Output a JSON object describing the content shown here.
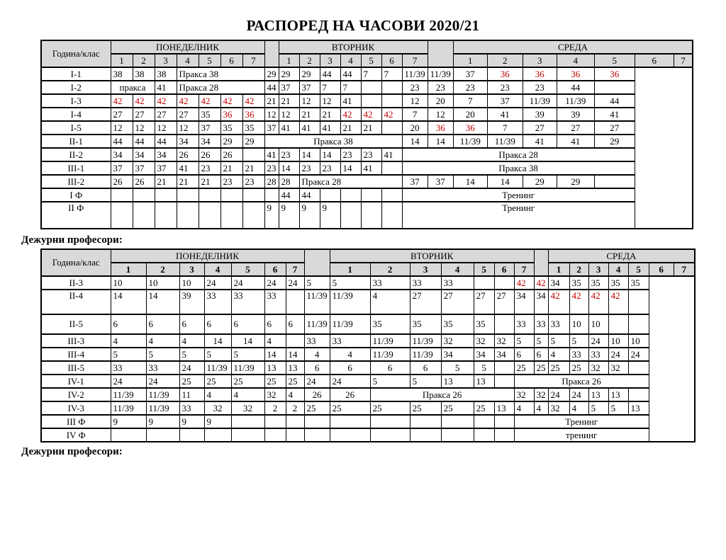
{
  "title": "РАСПОРЕД НА ЧАСОВИ 2020/21",
  "section_label_top": "Дежурни професори:",
  "section_label_bottom": "Дежурни професори:",
  "colors": {
    "red": "#c00000",
    "header_bg": "#d9d9d9",
    "border": "#000000",
    "page_bg": "#ffffff"
  },
  "header": {
    "year_class": "Година/клас",
    "days": [
      "ПОНЕДЕЛНИК",
      "ВТОРНИК",
      "СРЕДА"
    ],
    "periods": [
      "1",
      "2",
      "3",
      "4",
      "5",
      "6",
      "7"
    ]
  },
  "tables": [
    {
      "rows": [
        {
          "label": "I-1",
          "mon": [
            {
              "t": "38",
              "b": 1
            },
            {
              "t": "38",
              "b": 1
            },
            "38",
            {
              "t": "Пракса 38",
              "s": 4,
              "l": 1
            }
          ],
          "tue": [
            "29",
            "29",
            "29",
            "44",
            "44",
            "7",
            "7"
          ],
          "wed": [
            "11/39",
            "11/39",
            "37",
            {
              "t": "36",
              "r": 1
            },
            {
              "t": "36",
              "r": 1
            },
            {
              "t": "36",
              "r": 1
            },
            {
              "t": "36",
              "r": 1
            }
          ]
        },
        {
          "label": "I-2",
          "mon": [
            {
              "t": "пракса",
              "s": 2
            },
            "41",
            {
              "t": "Пракса 28",
              "s": 4,
              "l": 1
            }
          ],
          "tue": [
            "44",
            "37",
            "37",
            "7",
            "7",
            "",
            ""
          ],
          "wed": [
            "23",
            "23",
            "23",
            "23",
            "23",
            "44",
            ""
          ]
        },
        {
          "label": "I-3",
          "mon": [
            {
              "t": "42",
              "r": 1
            },
            {
              "t": "42",
              "r": 1
            },
            {
              "t": "42",
              "r": 1
            },
            {
              "t": "42",
              "r": 1
            },
            {
              "t": "42",
              "r": 1
            },
            {
              "t": "42",
              "r": 1
            },
            {
              "t": "42",
              "r": 1
            }
          ],
          "tue": [
            "21",
            "21",
            "12",
            "12",
            "41",
            "",
            ""
          ],
          "wed": [
            "12",
            "20",
            "7",
            "37",
            "11/39",
            "11/39",
            "44"
          ]
        },
        {
          "label": "I-4",
          "mon": [
            "27",
            "27",
            "27",
            "27",
            "35",
            {
              "t": "36",
              "r": 1
            },
            {
              "t": "36",
              "r": 1
            }
          ],
          "tue": [
            "12",
            "12",
            "21",
            "21",
            {
              "t": "42",
              "r": 1
            },
            {
              "t": "42",
              "r": 1
            },
            {
              "t": "42",
              "r": 1
            }
          ],
          "wed": [
            "7",
            "12",
            "20",
            "41",
            "39",
            "39",
            "41"
          ]
        },
        {
          "label": "I-5",
          "mon": [
            "12",
            "12",
            "12",
            "12",
            "37",
            "35",
            "35"
          ],
          "tue": [
            "37",
            "41",
            "41",
            "41",
            "21",
            "21",
            ""
          ],
          "wed": [
            "20",
            {
              "t": "36",
              "r": 1
            },
            {
              "t": "36",
              "r": 1
            },
            "7",
            "27",
            "27",
            "27"
          ]
        },
        {
          "label": "II-1",
          "mon": [
            "44",
            "44",
            "44",
            "34",
            "34",
            "29",
            "29"
          ],
          "tue": [
            {
              "t": "Пракса 38",
              "s": 7
            }
          ],
          "wed": [
            "14",
            "14",
            "11/39",
            "11/39",
            "41",
            "41",
            "29"
          ]
        },
        {
          "label": "II-2",
          "mon": [
            "34",
            "34",
            "34",
            "26",
            "26",
            "26",
            ""
          ],
          "tue": [
            "41",
            "23",
            "14",
            "14",
            "23",
            "23",
            "41"
          ],
          "wed": [
            {
              "t": "Пракса 28",
              "s": 7
            }
          ]
        },
        {
          "label": "III-1",
          "mon": [
            "37",
            "37",
            "37",
            "41",
            "23",
            "21",
            "21"
          ],
          "tue": [
            "23",
            "14",
            "23",
            "23",
            "14",
            "41",
            ""
          ],
          "wed": [
            {
              "t": "Пракса 38",
              "s": 7
            }
          ]
        },
        {
          "label": "III-2",
          "mon": [
            "26",
            "26",
            "21",
            "21",
            "21",
            "23",
            "23"
          ],
          "tue": [
            {
              "t": "28",
              "b": 1
            },
            {
              "t": "28",
              "b": 1
            },
            {
              "t": "Пракса 28",
              "s": 5,
              "l": 1
            }
          ],
          "wed": [
            "37",
            "37",
            "14",
            "14",
            "29",
            "29",
            ""
          ]
        },
        {
          "label": "I Ф",
          "mon": [
            "",
            "",
            "",
            "",
            "",
            "",
            ""
          ],
          "tue": [
            "",
            "44",
            "44",
            "",
            "",
            "",
            ""
          ],
          "wed": [
            {
              "t": "Тренинг",
              "s": 7
            }
          ]
        },
        {
          "label": "II Ф",
          "h": 38,
          "top": 1,
          "mon": [
            "",
            "",
            "",
            "",
            "",
            "",
            ""
          ],
          "tue": [
            "9",
            "9",
            "9",
            "9",
            "",
            "",
            ""
          ],
          "wed": [
            {
              "t": "Тренинг",
              "s": 7
            }
          ]
        }
      ]
    },
    {
      "rows": [
        {
          "label": "II-3",
          "mon": [
            "10",
            "10",
            "10",
            "24",
            "24",
            "24",
            "24"
          ],
          "tue": [
            "5",
            "5",
            "33",
            "33",
            "33",
            "",
            ""
          ],
          "wed": [
            {
              "t": "42",
              "r": 1
            },
            {
              "t": "42",
              "r": 1
            },
            "34",
            "35",
            "35",
            "35",
            "35"
          ]
        },
        {
          "label": "II-4",
          "h": 35,
          "top": 1,
          "mon": [
            "14",
            "14",
            "39",
            "33",
            "33",
            "33",
            ""
          ],
          "tue": [
            "11/39",
            "11/39",
            "4",
            "27",
            "27",
            "27",
            "27"
          ],
          "wed": [
            "34",
            "34",
            {
              "t": "42",
              "r": 1
            },
            {
              "t": "42",
              "r": 1
            },
            {
              "t": "42",
              "r": 1
            },
            {
              "t": "42",
              "r": 1
            },
            ""
          ]
        },
        {
          "label": "II-5",
          "h": 28,
          "mon": [
            "6",
            "6",
            "6",
            "6",
            "6",
            "6",
            "6"
          ],
          "tue": [
            "11/39",
            "11/39",
            "35",
            "35",
            "35",
            "35",
            ""
          ],
          "wed": [
            "33",
            "33",
            "33",
            "10",
            "10",
            "",
            ""
          ]
        },
        {
          "label": "III-3",
          "mon": [
            "4",
            "4",
            "4",
            {
              "t": "14",
              "c": 1
            },
            {
              "t": "14",
              "c": 1
            },
            "4",
            ""
          ],
          "tue": [
            "33",
            "33",
            "11/39",
            "11/39",
            "32",
            "32",
            "32"
          ],
          "wed": [
            "5",
            "5",
            "5",
            "5",
            "24",
            "10",
            "10"
          ]
        },
        {
          "label": "III-4",
          "mon": [
            "5",
            "5",
            "5",
            "5",
            "5",
            "14",
            "14"
          ],
          "tue": [
            {
              "t": "4",
              "c": 1
            },
            {
              "t": "4",
              "c": 1
            },
            "11/39",
            "11/39",
            "34",
            "34",
            "34"
          ],
          "wed": [
            "6",
            "6",
            "4",
            "33",
            "33",
            "24",
            "24"
          ]
        },
        {
          "label": "III-5",
          "mon": [
            "33",
            "33",
            "24",
            "11/39",
            "11/39",
            "13",
            "13"
          ],
          "tue": [
            {
              "t": "6",
              "c": 1
            },
            {
              "t": "6",
              "c": 1
            },
            {
              "t": "6",
              "c": 1
            },
            {
              "t": "6",
              "c": 1
            },
            {
              "t": "5",
              "c": 1
            },
            {
              "t": "5",
              "c": 1
            },
            ""
          ],
          "wed": [
            "25",
            "25",
            "25",
            "25",
            "32",
            "32",
            ""
          ]
        },
        {
          "label": "IV-1",
          "mon": [
            "24",
            "24",
            "25",
            "25",
            "25",
            "25",
            "25"
          ],
          "tue": [
            "24",
            "24",
            "5",
            "5",
            "13",
            "13",
            ""
          ],
          "wed": [
            {
              "t": "Пракса 26",
              "s": 7
            }
          ]
        },
        {
          "label": "IV-2",
          "mon": [
            "11/39",
            "11/39",
            "11",
            "4",
            "4",
            "32",
            "4"
          ],
          "tue": [
            {
              "t": "26",
              "b": 1,
              "c": 1
            },
            {
              "t": "26",
              "b": 1,
              "c": 1
            },
            {
              "t": "Пракса 26",
              "s": 5
            }
          ],
          "wed": [
            "32",
            "32",
            "24",
            "24",
            "13",
            "13",
            ""
          ]
        },
        {
          "label": "IV-3",
          "mon": [
            "11/39",
            "11/39",
            "33",
            {
              "t": "32",
              "c": 1
            },
            {
              "t": "32",
              "c": 1
            },
            {
              "t": "2",
              "c": 1
            },
            {
              "t": "2",
              "c": 1
            }
          ],
          "tue": [
            "25",
            "25",
            "25",
            "25",
            "25",
            "25",
            "13"
          ],
          "wed": [
            "4",
            "4",
            "32",
            "4",
            "5",
            "5",
            "13"
          ]
        },
        {
          "label": "III Ф",
          "mon": [
            "9",
            "9",
            "9",
            "9",
            "",
            "",
            ""
          ],
          "tue": [
            "",
            "",
            "",
            "",
            "",
            "",
            ""
          ],
          "wed": [
            {
              "t": "Тренинг",
              "s": 7
            }
          ]
        },
        {
          "label": "IV Ф",
          "mon": [
            "",
            "",
            "",
            "",
            "",
            "",
            ""
          ],
          "tue": [
            "",
            "",
            "",
            "",
            "",
            "",
            ""
          ],
          "wed": [
            {
              "t": "тренинг",
              "s": 7
            }
          ]
        }
      ]
    }
  ]
}
